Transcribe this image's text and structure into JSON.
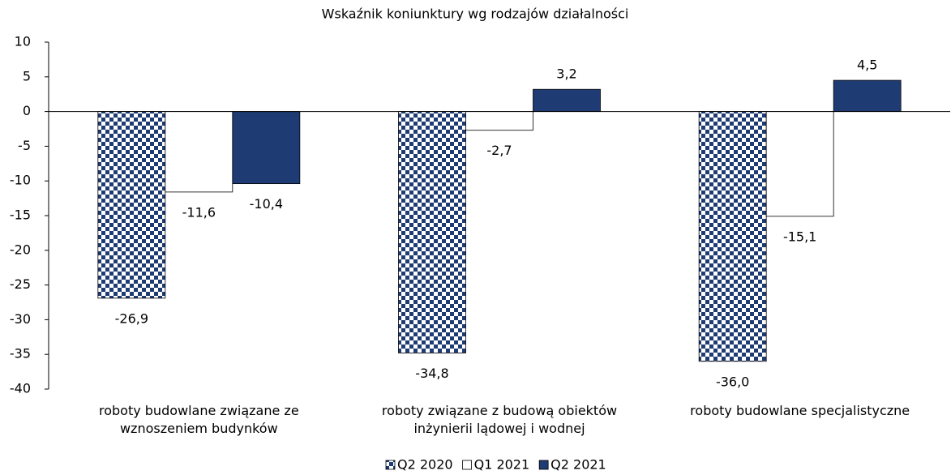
{
  "chart_data": {
    "type": "bar",
    "title": "Wskaźnik koniunktury wg rodzajów działalności",
    "categories": [
      "roboty budowlane związane ze wznoszeniem budynków",
      "roboty związane z budową obiektów inżynierii lądowej i wodnej",
      "roboty budowlane specjalistyczne"
    ],
    "series": [
      {
        "name": "Q2 2020",
        "color": "#1f3b73",
        "pattern": "checker",
        "values": [
          -26.9,
          -34.8,
          -36.0
        ],
        "value_labels": [
          "-26,9",
          "-34,8",
          "-36,0"
        ]
      },
      {
        "name": "Q1 2021",
        "color": "#ffffff",
        "values": [
          -11.6,
          -2.7,
          -15.1
        ],
        "value_labels": [
          "-11,6",
          "-2,7",
          "-15,1"
        ]
      },
      {
        "name": "Q2 2021",
        "color": "#1f3b73",
        "values": [
          -10.4,
          3.2,
          4.5
        ],
        "value_labels": [
          "-10,4",
          "3,2",
          "4,5"
        ]
      }
    ],
    "ylim": [
      -40,
      10
    ],
    "yticks": [
      -40,
      -35,
      -30,
      -25,
      -20,
      -15,
      -10,
      -5,
      0,
      5,
      10
    ],
    "legend": "bottom"
  }
}
